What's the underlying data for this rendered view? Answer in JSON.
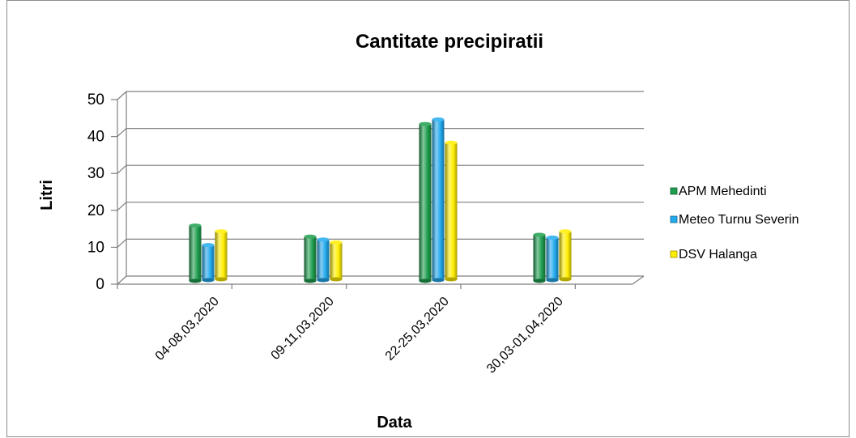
{
  "chart_data": {
    "type": "bar",
    "title": "Cantitate precipiratii",
    "xlabel": "Data",
    "ylabel": "Litri",
    "categories": [
      "04-08,03,2020",
      "09-11,03,2020",
      "22-25,03,2020",
      "30,03-01,04,2020"
    ],
    "series": [
      {
        "name": "APM Mehedinti",
        "values": [
          15,
          12,
          42.5,
          12.5
        ],
        "color": "#1e9e4e"
      },
      {
        "name": "Meteo Turnu Severin",
        "values": [
          9.5,
          11,
          43.5,
          11.5
        ],
        "color": "#22aaee"
      },
      {
        "name": "DSV Halanga",
        "values": [
          13,
          10,
          37,
          13
        ],
        "color": "#ffee00"
      }
    ],
    "yticks": [
      0,
      10,
      20,
      30,
      40,
      50
    ],
    "ylim": [
      0,
      50
    ],
    "grid": true,
    "legend": "right",
    "style": "3d-cylinder"
  }
}
